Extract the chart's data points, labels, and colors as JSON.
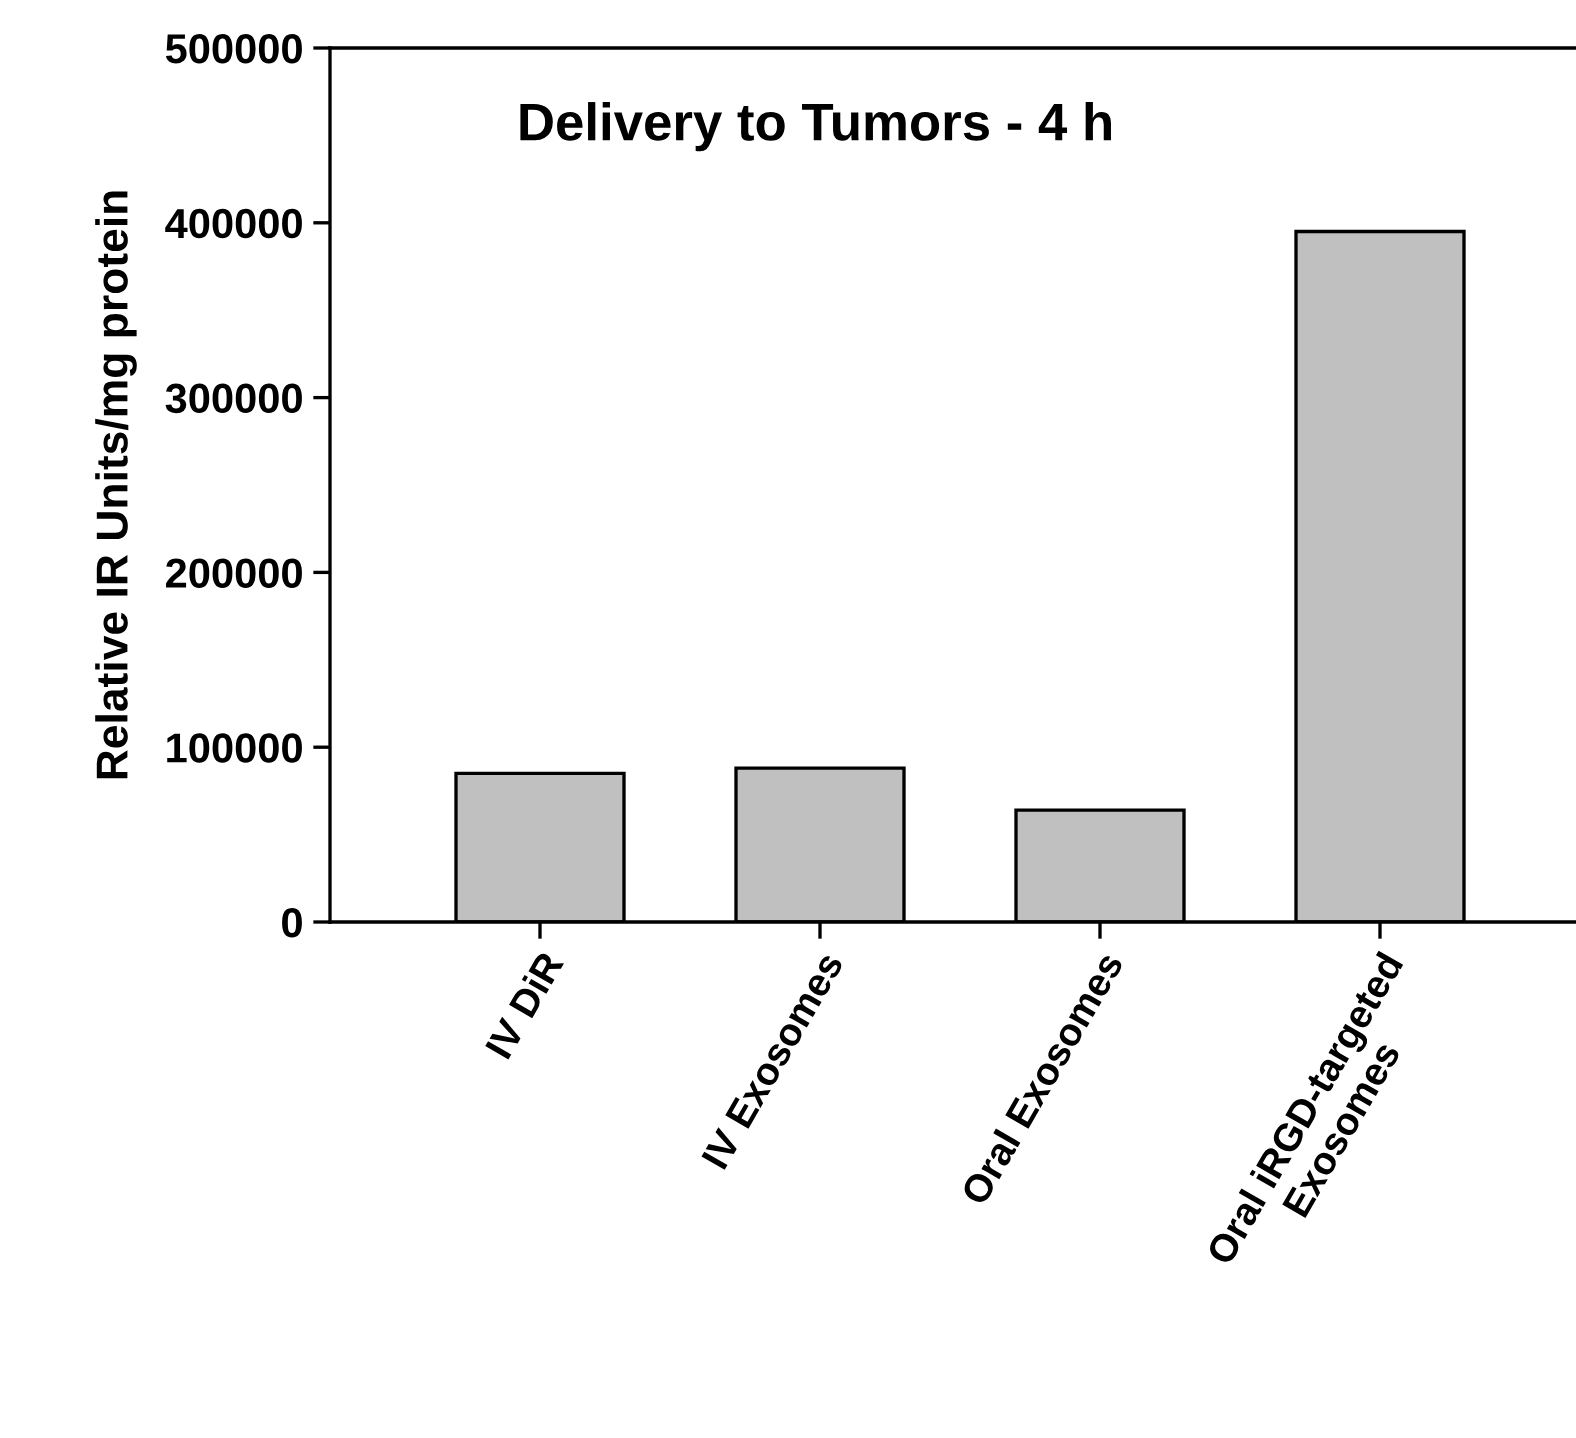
{
  "chart_data": {
    "type": "bar",
    "title": "Delivery to Tumors - 4 h",
    "ylabel": "Relative IR Units/mg protein",
    "categories": [
      "IV DiR",
      "IV Exosomes",
      "Oral Exosomes",
      "Oral iRGD-targeted\nExosomes"
    ],
    "values": [
      85000,
      88000,
      64000,
      395000
    ],
    "color": "#c0c0c0",
    "ylim": [
      0,
      500000
    ],
    "yticks": [
      0,
      100000,
      200000,
      300000,
      400000,
      500000
    ],
    "grid": false
  }
}
